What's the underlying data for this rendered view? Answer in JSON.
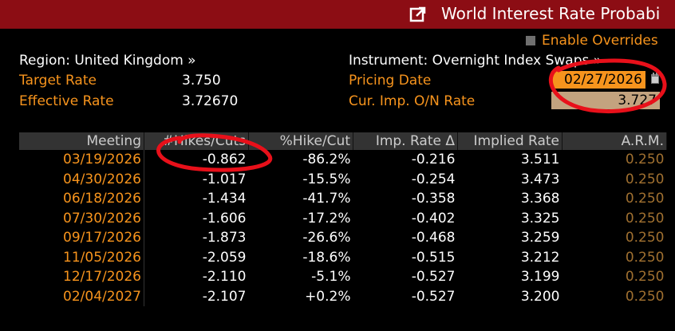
{
  "header": {
    "title": "World Interest Rate Probabi",
    "external_icon": "external-link-icon"
  },
  "overrides": {
    "label": "Enable Overrides",
    "checked": false
  },
  "left": {
    "region_label": "Region: United Kingdom »",
    "target_rate_label": "Target Rate",
    "target_rate_value": "3.750",
    "effective_rate_label": "Effective Rate",
    "effective_rate_value": "3.72670"
  },
  "right": {
    "instrument_label": "Instrument: Overnight Index Swaps »",
    "pricing_date_label": "Pricing Date",
    "pricing_date_value": "02/27/2026",
    "onrate_label": "Cur. Imp. O/N Rate",
    "onrate_value": "3.727"
  },
  "table": {
    "columns": [
      "Meeting",
      "#Hikes/Cuts",
      "%Hike/Cut",
      "Imp. Rate Δ",
      "Implied Rate",
      "A.R.M."
    ],
    "rows": [
      [
        "03/19/2026",
        "-0.862",
        "-86.2%",
        "-0.216",
        "3.511",
        "0.250"
      ],
      [
        "04/30/2026",
        "-1.017",
        "-15.5%",
        "-0.254",
        "3.473",
        "0.250"
      ],
      [
        "06/18/2026",
        "-1.434",
        "-41.7%",
        "-0.358",
        "3.368",
        "0.250"
      ],
      [
        "07/30/2026",
        "-1.606",
        "-17.2%",
        "-0.402",
        "3.325",
        "0.250"
      ],
      [
        "09/17/2026",
        "-1.873",
        "-26.6%",
        "-0.468",
        "3.259",
        "0.250"
      ],
      [
        "11/05/2026",
        "-2.059",
        "-18.6%",
        "-0.515",
        "3.212",
        "0.250"
      ],
      [
        "12/17/2026",
        "-2.110",
        "-5.1%",
        "-0.527",
        "3.199",
        "0.250"
      ],
      [
        "02/04/2027",
        "-2.107",
        "+0.2%",
        "-0.527",
        "3.200",
        "0.250"
      ]
    ]
  },
  "colors": {
    "header_red": "#8c0d14",
    "amber": "#f7941d",
    "annotation_red": "#e8101a"
  }
}
